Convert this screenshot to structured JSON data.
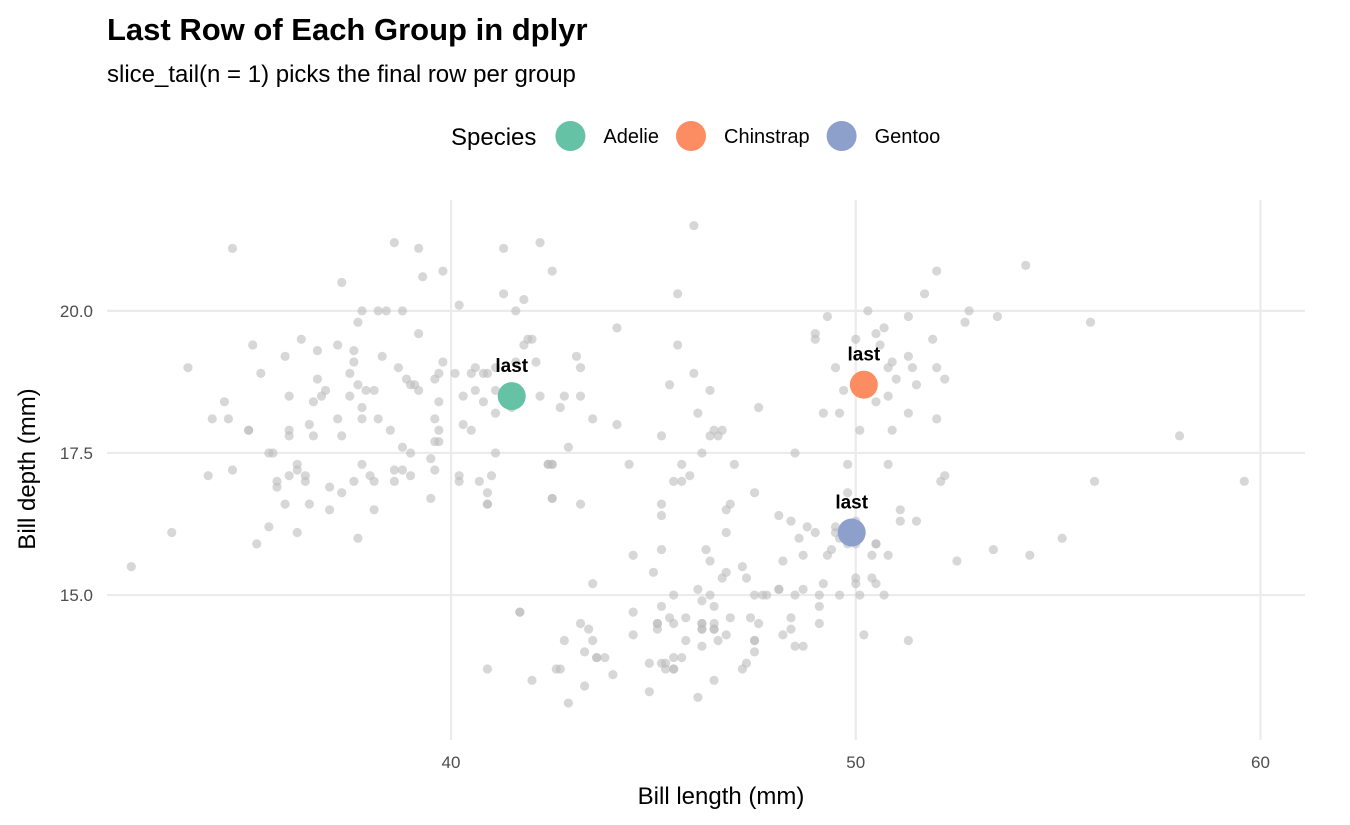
{
  "chart_data": {
    "type": "scatter",
    "title": "Last Row of Each Group in dplyr",
    "subtitle": "slice_tail(n = 1) picks the final row per group",
    "xlabel": "Bill length (mm)",
    "ylabel": "Bill depth (mm)",
    "xlim": [
      31.5,
      61.1
    ],
    "ylim": [
      12.45,
      21.95
    ],
    "x_ticks": [
      40,
      50,
      60
    ],
    "y_ticks": [
      15.0,
      17.5,
      20.0
    ],
    "x_tick_labels": [
      "40",
      "50",
      "60"
    ],
    "y_tick_labels": [
      "15.0",
      "17.5",
      "20.0"
    ],
    "grid": true,
    "legend": {
      "title": "Species",
      "position": "top",
      "items": [
        {
          "label": "Adelie",
          "color": "#66c2a5"
        },
        {
          "label": "Chinstrap",
          "color": "#fc8d62"
        },
        {
          "label": "Gentoo",
          "color": "#8da0cb"
        }
      ]
    },
    "background_points_color": "#bdbdbd",
    "background_points": [
      [
        32.1,
        15.5
      ],
      [
        33.1,
        16.1
      ],
      [
        33.5,
        19.0
      ],
      [
        34.0,
        17.1
      ],
      [
        34.1,
        18.1
      ],
      [
        34.4,
        18.4
      ],
      [
        34.5,
        18.1
      ],
      [
        34.6,
        21.1
      ],
      [
        34.6,
        17.2
      ],
      [
        35.0,
        17.9
      ],
      [
        35.0,
        17.9
      ],
      [
        35.1,
        19.4
      ],
      [
        35.2,
        15.9
      ],
      [
        35.3,
        18.9
      ],
      [
        35.5,
        16.2
      ],
      [
        35.5,
        17.5
      ],
      [
        35.6,
        17.5
      ],
      [
        35.7,
        17.0
      ],
      [
        35.7,
        16.9
      ],
      [
        35.9,
        16.6
      ],
      [
        35.9,
        19.2
      ],
      [
        36.0,
        17.9
      ],
      [
        36.0,
        18.5
      ],
      [
        36.0,
        17.1
      ],
      [
        36.0,
        17.8
      ],
      [
        36.2,
        16.1
      ],
      [
        36.2,
        17.2
      ],
      [
        36.2,
        17.3
      ],
      [
        36.3,
        19.5
      ],
      [
        36.4,
        17.0
      ],
      [
        36.4,
        17.1
      ],
      [
        36.5,
        18.0
      ],
      [
        36.5,
        16.6
      ],
      [
        36.6,
        17.8
      ],
      [
        36.6,
        18.4
      ],
      [
        36.7,
        18.8
      ],
      [
        36.7,
        19.3
      ],
      [
        36.8,
        18.5
      ],
      [
        36.9,
        18.6
      ],
      [
        37.0,
        16.9
      ],
      [
        37.0,
        16.5
      ],
      [
        37.2,
        18.1
      ],
      [
        37.2,
        19.4
      ],
      [
        37.3,
        16.8
      ],
      [
        37.3,
        17.8
      ],
      [
        37.3,
        20.5
      ],
      [
        37.5,
        18.9
      ],
      [
        37.5,
        18.5
      ],
      [
        37.6,
        19.1
      ],
      [
        37.6,
        17.0
      ],
      [
        37.6,
        19.3
      ],
      [
        37.7,
        18.7
      ],
      [
        37.7,
        16.0
      ],
      [
        37.7,
        19.8
      ],
      [
        37.8,
        18.3
      ],
      [
        37.8,
        17.3
      ],
      [
        37.8,
        20.0
      ],
      [
        37.8,
        18.1
      ],
      [
        37.9,
        18.6
      ],
      [
        38.0,
        17.1
      ],
      [
        38.1,
        18.6
      ],
      [
        38.1,
        17.0
      ],
      [
        38.1,
        16.5
      ],
      [
        38.2,
        18.1
      ],
      [
        38.2,
        20.0
      ],
      [
        38.3,
        19.2
      ],
      [
        38.5,
        17.9
      ],
      [
        38.6,
        21.2
      ],
      [
        38.6,
        17.2
      ],
      [
        38.6,
        17.0
      ],
      [
        38.7,
        19.0
      ],
      [
        38.8,
        17.2
      ],
      [
        38.8,
        20.0
      ],
      [
        38.8,
        17.6
      ],
      [
        38.9,
        18.8
      ],
      [
        39.0,
        17.5
      ],
      [
        39.0,
        18.7
      ],
      [
        39.0,
        17.1
      ],
      [
        39.1,
        18.7
      ],
      [
        39.2,
        19.6
      ],
      [
        39.2,
        18.6
      ],
      [
        39.2,
        21.1
      ],
      [
        39.3,
        20.6
      ],
      [
        39.5,
        17.4
      ],
      [
        39.5,
        16.7
      ],
      [
        39.6,
        17.7
      ],
      [
        39.6,
        18.8
      ],
      [
        39.6,
        17.2
      ],
      [
        39.6,
        18.1
      ],
      [
        39.7,
        18.9
      ],
      [
        39.7,
        17.7
      ],
      [
        39.7,
        18.4
      ],
      [
        39.7,
        17.9
      ],
      [
        39.8,
        19.1
      ],
      [
        39.8,
        20.7
      ],
      [
        40.1,
        18.9
      ],
      [
        40.2,
        17.0
      ],
      [
        40.2,
        17.1
      ],
      [
        40.2,
        20.1
      ],
      [
        40.3,
        18.0
      ],
      [
        40.3,
        18.5
      ],
      [
        40.5,
        17.9
      ],
      [
        40.5,
        18.9
      ],
      [
        40.6,
        19.0
      ],
      [
        40.6,
        18.6
      ],
      [
        40.7,
        17.0
      ],
      [
        40.8,
        18.4
      ],
      [
        40.8,
        18.9
      ],
      [
        40.9,
        16.8
      ],
      [
        40.9,
        18.9
      ],
      [
        40.9,
        16.6
      ],
      [
        41.0,
        17.1
      ],
      [
        41.1,
        18.6
      ],
      [
        41.1,
        17.5
      ],
      [
        41.1,
        19.0
      ],
      [
        41.1,
        18.2
      ],
      [
        41.3,
        21.1
      ],
      [
        41.3,
        20.3
      ],
      [
        41.4,
        18.5
      ],
      [
        41.4,
        18.6
      ],
      [
        41.5,
        18.3
      ],
      [
        41.6,
        20.0
      ],
      [
        41.6,
        19.1
      ],
      [
        41.8,
        19.4
      ],
      [
        41.8,
        20.2
      ],
      [
        41.9,
        19.5
      ],
      [
        42.0,
        19.5
      ],
      [
        42.1,
        19.1
      ],
      [
        42.2,
        18.5
      ],
      [
        42.2,
        21.2
      ],
      [
        42.4,
        17.3
      ],
      [
        42.5,
        16.7
      ],
      [
        42.5,
        17.3
      ],
      [
        42.5,
        20.7
      ],
      [
        42.7,
        18.3
      ],
      [
        42.8,
        18.5
      ],
      [
        42.9,
        17.6
      ],
      [
        43.1,
        19.2
      ],
      [
        43.2,
        19.0
      ],
      [
        43.2,
        18.5
      ],
      [
        44.1,
        19.7
      ],
      [
        44.1,
        18.0
      ],
      [
        41.7,
        14.7
      ],
      [
        43.6,
        13.9
      ],
      [
        45.5,
        13.7
      ],
      [
        46.2,
        14.4
      ],
      [
        46.5,
        14.4
      ],
      [
        47.5,
        14.2
      ],
      [
        48.1,
        15.1
      ],
      [
        46.2,
        14.5
      ],
      [
        46.1,
        13.2
      ],
      [
        50.0,
        16.3
      ],
      [
        48.7,
        14.1
      ],
      [
        50.0,
        15.2
      ],
      [
        47.6,
        14.5
      ],
      [
        46.5,
        13.5
      ],
      [
        45.4,
        14.6
      ],
      [
        46.7,
        15.3
      ],
      [
        43.3,
        13.4
      ],
      [
        46.8,
        15.4
      ],
      [
        40.9,
        13.7
      ],
      [
        49.0,
        16.1
      ],
      [
        45.5,
        13.7
      ],
      [
        48.4,
        14.6
      ],
      [
        45.8,
        14.6
      ],
      [
        49.3,
        15.7
      ],
      [
        42.0,
        13.5
      ],
      [
        49.2,
        15.2
      ],
      [
        46.2,
        14.5
      ],
      [
        48.7,
        15.1
      ],
      [
        50.2,
        14.3
      ],
      [
        45.1,
        14.5
      ],
      [
        46.5,
        14.5
      ],
      [
        46.3,
        15.8
      ],
      [
        42.9,
        13.1
      ],
      [
        46.1,
        15.1
      ],
      [
        44.5,
        14.3
      ],
      [
        47.8,
        15.0
      ],
      [
        48.2,
        14.3
      ],
      [
        50.0,
        15.3
      ],
      [
        47.3,
        15.3
      ],
      [
        42.8,
        14.2
      ],
      [
        45.1,
        14.5
      ],
      [
        59.6,
        17.0
      ],
      [
        49.1,
        14.8
      ],
      [
        48.4,
        16.3
      ],
      [
        42.6,
        13.7
      ],
      [
        44.4,
        17.3
      ],
      [
        44.0,
        13.6
      ],
      [
        48.7,
        15.7
      ],
      [
        42.7,
        13.7
      ],
      [
        49.6,
        16.0
      ],
      [
        45.3,
        13.7
      ],
      [
        49.6,
        15.0
      ],
      [
        50.5,
        15.9
      ],
      [
        43.6,
        13.9
      ],
      [
        45.5,
        13.9
      ],
      [
        50.5,
        15.9
      ],
      [
        44.9,
        13.3
      ],
      [
        45.2,
        15.8
      ],
      [
        46.6,
        14.2
      ],
      [
        48.5,
        14.1
      ],
      [
        45.1,
        14.4
      ],
      [
        50.1,
        15.0
      ],
      [
        46.5,
        14.4
      ],
      [
        45.0,
        15.4
      ],
      [
        43.8,
        13.9
      ],
      [
        45.5,
        15.0
      ],
      [
        43.2,
        14.5
      ],
      [
        50.4,
        15.3
      ],
      [
        45.3,
        13.8
      ],
      [
        46.2,
        14.9
      ],
      [
        45.7,
        13.9
      ],
      [
        54.3,
        15.7
      ],
      [
        45.8,
        14.2
      ],
      [
        49.8,
        16.8
      ],
      [
        46.2,
        14.4
      ],
      [
        49.5,
        16.2
      ],
      [
        43.5,
        14.2
      ],
      [
        50.7,
        15.0
      ],
      [
        47.7,
        15.0
      ],
      [
        46.4,
        15.6
      ],
      [
        48.2,
        15.6
      ],
      [
        46.5,
        14.8
      ],
      [
        46.4,
        15.0
      ],
      [
        48.6,
        16.0
      ],
      [
        47.5,
        14.2
      ],
      [
        51.1,
        16.3
      ],
      [
        45.2,
        13.8
      ],
      [
        45.2,
        16.4
      ],
      [
        49.1,
        14.5
      ],
      [
        52.5,
        15.6
      ],
      [
        47.4,
        14.6
      ],
      [
        50.0,
        15.9
      ],
      [
        44.9,
        13.8
      ],
      [
        50.8,
        17.3
      ],
      [
        43.4,
        14.4
      ],
      [
        51.3,
        14.2
      ],
      [
        47.5,
        14.0
      ],
      [
        52.1,
        17.0
      ],
      [
        47.5,
        15.0
      ],
      [
        52.2,
        17.1
      ],
      [
        45.5,
        14.5
      ],
      [
        49.5,
        16.1
      ],
      [
        44.5,
        14.7
      ],
      [
        50.8,
        15.7
      ],
      [
        49.4,
        15.8
      ],
      [
        46.9,
        14.6
      ],
      [
        48.4,
        14.4
      ],
      [
        51.1,
        16.5
      ],
      [
        48.5,
        15.0
      ],
      [
        55.9,
        17.0
      ],
      [
        47.2,
        15.5
      ],
      [
        49.1,
        15.0
      ],
      [
        47.3,
        13.8
      ],
      [
        46.8,
        16.1
      ],
      [
        41.7,
        14.7
      ],
      [
        53.4,
        15.8
      ],
      [
        43.3,
        14.0
      ],
      [
        48.1,
        15.1
      ],
      [
        50.5,
        15.2
      ],
      [
        49.8,
        15.9
      ],
      [
        43.5,
        15.2
      ],
      [
        51.5,
        16.3
      ],
      [
        46.2,
        14.1
      ],
      [
        55.1,
        16.0
      ],
      [
        44.5,
        15.7
      ],
      [
        48.8,
        16.2
      ],
      [
        47.2,
        13.7
      ],
      [
        46.8,
        14.3
      ],
      [
        50.4,
        15.7
      ],
      [
        45.2,
        14.8
      ],
      [
        49.9,
        16.1
      ],
      [
        46.5,
        17.9
      ],
      [
        50.0,
        19.5
      ],
      [
        51.3,
        19.2
      ],
      [
        45.4,
        18.7
      ],
      [
        52.7,
        19.8
      ],
      [
        45.2,
        17.8
      ],
      [
        46.1,
        18.2
      ],
      [
        51.3,
        18.2
      ],
      [
        46.0,
        18.9
      ],
      [
        51.3,
        19.9
      ],
      [
        46.6,
        17.8
      ],
      [
        51.7,
        20.3
      ],
      [
        47.0,
        17.3
      ],
      [
        52.0,
        18.1
      ],
      [
        45.9,
        17.1
      ],
      [
        50.5,
        19.6
      ],
      [
        50.3,
        20.0
      ],
      [
        58.0,
        17.8
      ],
      [
        46.4,
        18.6
      ],
      [
        49.2,
        18.2
      ],
      [
        42.4,
        17.3
      ],
      [
        48.5,
        17.5
      ],
      [
        43.2,
        16.6
      ],
      [
        50.6,
        19.4
      ],
      [
        46.7,
        17.9
      ],
      [
        52.0,
        19.0
      ],
      [
        50.5,
        18.4
      ],
      [
        49.5,
        19.0
      ],
      [
        46.4,
        17.8
      ],
      [
        52.8,
        20.0
      ],
      [
        40.9,
        16.6
      ],
      [
        54.2,
        20.8
      ],
      [
        42.5,
        16.7
      ],
      [
        51.0,
        18.8
      ],
      [
        49.7,
        18.6
      ],
      [
        47.5,
        16.8
      ],
      [
        47.6,
        18.3
      ],
      [
        52.0,
        20.7
      ],
      [
        46.9,
        16.6
      ],
      [
        53.5,
        19.9
      ],
      [
        49.0,
        19.5
      ],
      [
        46.2,
        17.5
      ],
      [
        50.9,
        19.1
      ],
      [
        45.5,
        17.0
      ],
      [
        50.9,
        17.9
      ],
      [
        50.8,
        18.5
      ],
      [
        50.1,
        17.9
      ],
      [
        49.0,
        19.6
      ],
      [
        51.5,
        18.7
      ],
      [
        49.8,
        17.3
      ],
      [
        48.1,
        16.4
      ],
      [
        51.4,
        19.0
      ],
      [
        45.7,
        17.3
      ],
      [
        50.7,
        19.7
      ],
      [
        42.5,
        17.3
      ],
      [
        52.2,
        18.8
      ],
      [
        45.2,
        16.6
      ],
      [
        49.3,
        19.9
      ],
      [
        50.2,
        18.8
      ],
      [
        45.6,
        19.4
      ],
      [
        51.9,
        19.5
      ],
      [
        46.8,
        16.5
      ],
      [
        45.7,
        17.0
      ],
      [
        55.8,
        19.8
      ],
      [
        43.5,
        18.1
      ],
      [
        49.6,
        18.2
      ],
      [
        50.8,
        19.0
      ],
      [
        50.2,
        18.7
      ],
      [
        46.0,
        21.5
      ],
      [
        45.6,
        20.3
      ],
      [
        38.4,
        20.0
      ]
    ],
    "highlighted_points": [
      {
        "species": "Adelie",
        "x": 41.5,
        "y": 18.5,
        "label": "last"
      },
      {
        "species": "Chinstrap",
        "x": 50.2,
        "y": 18.7,
        "label": "last"
      },
      {
        "species": "Gentoo",
        "x": 49.9,
        "y": 16.1,
        "label": "last"
      }
    ]
  }
}
